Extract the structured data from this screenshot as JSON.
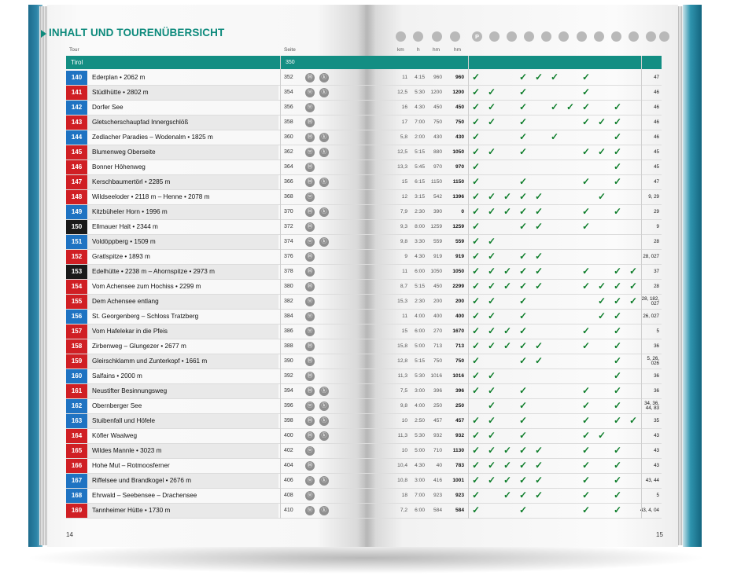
{
  "header": {
    "title": "INHALT UND TOURENÜBERSICHT"
  },
  "columns": {
    "tour": "Tour",
    "seite": "Seite",
    "km": "km",
    "h": "h",
    "hm": "hm",
    "hm2": "hm"
  },
  "header_icons": [
    {
      "name": "distance-icon",
      "glyph": ""
    },
    {
      "name": "time-icon",
      "glyph": ""
    },
    {
      "name": "ascent-icon",
      "glyph": ""
    },
    {
      "name": "altitude-icon",
      "glyph": ""
    },
    {
      "name": "parking-icon",
      "glyph": "P"
    },
    {
      "name": "bus-icon",
      "glyph": ""
    },
    {
      "name": "restaurant-icon",
      "glyph": ""
    },
    {
      "name": "hut-icon",
      "glyph": ""
    },
    {
      "name": "summit-icon",
      "glyph": ""
    },
    {
      "name": "winter-icon",
      "glyph": ""
    },
    {
      "name": "bike-icon",
      "glyph": ""
    },
    {
      "name": "cablecar-icon",
      "glyph": ""
    },
    {
      "name": "lake-icon",
      "glyph": ""
    },
    {
      "name": "hazard-icon",
      "glyph": ""
    },
    {
      "name": "kids-icon",
      "glyph": ""
    },
    {
      "name": "map-icon",
      "glyph": ""
    }
  ],
  "region": {
    "name": "Tirol",
    "page": "350"
  },
  "colors": {
    "red": "#d01f24",
    "blue": "#1f73c2",
    "black": "#1a1a1a",
    "teal": "#138e83",
    "check": "#0d7d2a"
  },
  "check_glyph": "✓",
  "tours": [
    {
      "num": "140",
      "color": "blue",
      "name": "Ederplan • 2062 m",
      "page": "352",
      "icons": [
        "Ⓜ",
        "ⓚ"
      ],
      "km": "11",
      "h": "4:15",
      "hm": "960",
      "hm2": "960",
      "checks": [
        1,
        0,
        0,
        1,
        1,
        1,
        0,
        1,
        0,
        0,
        0
      ],
      "karte": "47"
    },
    {
      "num": "141",
      "color": "red",
      "name": "Stüdlhütte • 2802 m",
      "page": "354",
      "icons": [
        "ⓦ",
        "ⓚ"
      ],
      "km": "12,5",
      "h": "5:30",
      "hm": "1200",
      "hm2": "1200",
      "checks": [
        1,
        1,
        0,
        1,
        0,
        0,
        0,
        1,
        0,
        0,
        0
      ],
      "karte": "46"
    },
    {
      "num": "142",
      "color": "blue",
      "name": "Dorfer See",
      "page": "356",
      "icons": [
        "ⓦ"
      ],
      "km": "16",
      "h": "4:30",
      "hm": "450",
      "hm2": "450",
      "checks": [
        1,
        1,
        0,
        1,
        0,
        1,
        1,
        1,
        0,
        1,
        0
      ],
      "karte": "46"
    },
    {
      "num": "143",
      "color": "red",
      "name": "Gletscherschaupfad Innergschlöß",
      "page": "358",
      "icons": [
        "Ⓜ"
      ],
      "km": "17",
      "h": "7:00",
      "hm": "750",
      "hm2": "750",
      "checks": [
        1,
        1,
        0,
        1,
        0,
        0,
        0,
        1,
        1,
        1,
        0
      ],
      "karte": "46"
    },
    {
      "num": "144",
      "color": "blue",
      "name": "Zedlacher Paradies – Wodenalm • 1825 m",
      "page": "360",
      "icons": [
        "Ⓜ",
        "ⓚ"
      ],
      "km": "5,8",
      "h": "2:00",
      "hm": "430",
      "hm2": "430",
      "checks": [
        1,
        0,
        0,
        1,
        0,
        1,
        0,
        0,
        0,
        1,
        0
      ],
      "karte": "46"
    },
    {
      "num": "145",
      "color": "red",
      "name": "Blumenweg Oberseite",
      "page": "362",
      "icons": [
        "ⓦ",
        "ⓚ"
      ],
      "km": "12,5",
      "h": "5:15",
      "hm": "880",
      "hm2": "1050",
      "checks": [
        1,
        1,
        0,
        1,
        0,
        0,
        0,
        1,
        1,
        1,
        0
      ],
      "karte": "45"
    },
    {
      "num": "146",
      "color": "red",
      "name": "Bonner Höhenweg",
      "page": "364",
      "icons": [
        "Ⓜ"
      ],
      "km": "13,3",
      "h": "5:45",
      "hm": "970",
      "hm2": "970",
      "checks": [
        1,
        0,
        0,
        0,
        0,
        0,
        0,
        0,
        0,
        1,
        0
      ],
      "karte": "45"
    },
    {
      "num": "147",
      "color": "red",
      "name": "Kerschbaumertörl • 2285 m",
      "page": "366",
      "icons": [
        "Ⓜ",
        "ⓚ"
      ],
      "km": "15",
      "h": "6:15",
      "hm": "1150",
      "hm2": "1150",
      "checks": [
        1,
        0,
        0,
        1,
        0,
        0,
        0,
        1,
        0,
        1,
        0
      ],
      "karte": "47"
    },
    {
      "num": "148",
      "color": "red",
      "name": "Wildseeloder • 2118 m – Henne • 2078 m",
      "page": "368",
      "icons": [
        "ⓦ"
      ],
      "km": "12",
      "h": "3:15",
      "hm": "542",
      "hm2": "1396",
      "checks": [
        1,
        1,
        1,
        1,
        1,
        0,
        0,
        0,
        1,
        0,
        0
      ],
      "karte": "9, 29"
    },
    {
      "num": "149",
      "color": "blue",
      "name": "Kitzbüheler Horn • 1996 m",
      "page": "370",
      "icons": [
        "Ⓜ",
        "ⓚ"
      ],
      "km": "7,9",
      "h": "2:30",
      "hm": "390",
      "hm2": "0",
      "checks": [
        1,
        1,
        1,
        1,
        1,
        0,
        0,
        1,
        0,
        1,
        0
      ],
      "karte": "29"
    },
    {
      "num": "150",
      "color": "black",
      "name": "Ellmauer Halt • 2344 m",
      "page": "372",
      "icons": [
        "Ⓜ"
      ],
      "km": "9,3",
      "h": "8:00",
      "hm": "1259",
      "hm2": "1259",
      "checks": [
        1,
        0,
        0,
        1,
        1,
        0,
        0,
        1,
        0,
        0,
        0
      ],
      "karte": "9"
    },
    {
      "num": "151",
      "color": "blue",
      "name": "Voldöppberg • 1509 m",
      "page": "374",
      "icons": [
        "ⓦ",
        "ⓚ"
      ],
      "km": "9,8",
      "h": "3:30",
      "hm": "559",
      "hm2": "559",
      "checks": [
        1,
        1,
        0,
        0,
        0,
        0,
        0,
        0,
        0,
        0,
        0
      ],
      "karte": "28"
    },
    {
      "num": "152",
      "color": "red",
      "name": "Gratlspitze • 1893 m",
      "page": "376",
      "icons": [
        "Ⓜ"
      ],
      "km": "9",
      "h": "4:30",
      "hm": "919",
      "hm2": "919",
      "checks": [
        1,
        1,
        0,
        1,
        1,
        0,
        0,
        0,
        0,
        0,
        0
      ],
      "karte": "28, 027"
    },
    {
      "num": "153",
      "color": "black",
      "name": "Edelhütte • 2238 m – Ahornspitze • 2973 m",
      "page": "378",
      "icons": [
        "Ⓜ"
      ],
      "km": "11",
      "h": "6:00",
      "hm": "1050",
      "hm2": "1050",
      "checks": [
        1,
        1,
        1,
        1,
        1,
        0,
        0,
        1,
        0,
        1,
        1
      ],
      "karte": "37"
    },
    {
      "num": "154",
      "color": "red",
      "name": "Vom Achensee zum Hochiss • 2299 m",
      "page": "380",
      "icons": [
        "Ⓜ"
      ],
      "km": "8,7",
      "h": "5:15",
      "hm": "450",
      "hm2": "2299",
      "checks": [
        1,
        1,
        1,
        1,
        1,
        0,
        0,
        1,
        1,
        1,
        1
      ],
      "karte": "28"
    },
    {
      "num": "155",
      "color": "red",
      "name": "Dem Achensee entlang",
      "page": "382",
      "icons": [
        "ⓦ"
      ],
      "km": "15,3",
      "h": "2:30",
      "hm": "200",
      "hm2": "200",
      "checks": [
        1,
        1,
        0,
        1,
        0,
        0,
        0,
        0,
        1,
        1,
        1
      ],
      "karte": "28, 182, 027"
    },
    {
      "num": "156",
      "color": "blue",
      "name": "St. Georgenberg – Schloss Tratzberg",
      "page": "384",
      "icons": [
        "ⓦ"
      ],
      "km": "11",
      "h": "4:00",
      "hm": "400",
      "hm2": "400",
      "checks": [
        1,
        1,
        0,
        1,
        0,
        0,
        0,
        0,
        1,
        1,
        0
      ],
      "karte": "26, 027"
    },
    {
      "num": "157",
      "color": "red",
      "name": "Vom Hafelekar in die Pfeis",
      "page": "386",
      "icons": [
        "ⓦ"
      ],
      "km": "15",
      "h": "6:00",
      "hm": "270",
      "hm2": "1670",
      "checks": [
        1,
        1,
        1,
        1,
        0,
        0,
        0,
        1,
        0,
        1,
        0
      ],
      "karte": "5"
    },
    {
      "num": "158",
      "color": "red",
      "name": "Zirbenweg – Glungezer • 2677 m",
      "page": "388",
      "icons": [
        "Ⓜ"
      ],
      "km": "15,8",
      "h": "5:00",
      "hm": "713",
      "hm2": "713",
      "checks": [
        1,
        1,
        1,
        1,
        1,
        0,
        0,
        1,
        0,
        1,
        0
      ],
      "karte": "36"
    },
    {
      "num": "159",
      "color": "red",
      "name": "Gleirschklamm und Zunterkopf • 1661 m",
      "page": "390",
      "icons": [
        "Ⓜ"
      ],
      "km": "12,8",
      "h": "5:15",
      "hm": "750",
      "hm2": "750",
      "checks": [
        1,
        0,
        0,
        1,
        1,
        0,
        0,
        0,
        0,
        1,
        0
      ],
      "karte": "5, 26, 026"
    },
    {
      "num": "160",
      "color": "blue",
      "name": "Salfains • 2000 m",
      "page": "392",
      "icons": [
        "Ⓜ"
      ],
      "km": "11,3",
      "h": "5:30",
      "hm": "1016",
      "hm2": "1016",
      "checks": [
        1,
        1,
        0,
        0,
        0,
        0,
        0,
        0,
        0,
        1,
        0
      ],
      "karte": "36"
    },
    {
      "num": "161",
      "color": "red",
      "name": "Neustifter Besinnungsweg",
      "page": "394",
      "icons": [
        "Ⓜ",
        "ⓚ"
      ],
      "km": "7,5",
      "h": "3:00",
      "hm": "396",
      "hm2": "396",
      "checks": [
        1,
        1,
        0,
        1,
        0,
        0,
        0,
        1,
        0,
        1,
        0
      ],
      "karte": "36"
    },
    {
      "num": "162",
      "color": "blue",
      "name": "Obernberger See",
      "page": "396",
      "icons": [
        "ⓦ",
        "ⓚ"
      ],
      "km": "9,8",
      "h": "4:00",
      "hm": "250",
      "hm2": "250",
      "checks": [
        0,
        1,
        0,
        1,
        0,
        0,
        0,
        1,
        0,
        1,
        0
      ],
      "karte": "34, 36, 44, 83"
    },
    {
      "num": "163",
      "color": "blue",
      "name": "Stuibenfall und Höfele",
      "page": "398",
      "icons": [
        "Ⓜ",
        "ⓚ"
      ],
      "km": "10",
      "h": "2:50",
      "hm": "457",
      "hm2": "457",
      "checks": [
        1,
        1,
        0,
        1,
        0,
        0,
        0,
        1,
        0,
        1,
        1
      ],
      "karte": "35"
    },
    {
      "num": "164",
      "color": "red",
      "name": "Köfler Waalweg",
      "page": "400",
      "icons": [
        "Ⓜ",
        "ⓚ"
      ],
      "km": "11,3",
      "h": "5:30",
      "hm": "932",
      "hm2": "932",
      "checks": [
        1,
        1,
        0,
        1,
        0,
        0,
        0,
        1,
        1,
        0,
        0
      ],
      "karte": "43"
    },
    {
      "num": "165",
      "color": "red",
      "name": "Wildes Mannle • 3023 m",
      "page": "402",
      "icons": [
        "ⓦ"
      ],
      "km": "10",
      "h": "5:00",
      "hm": "710",
      "hm2": "1130",
      "checks": [
        1,
        1,
        1,
        1,
        1,
        0,
        0,
        1,
        0,
        1,
        0
      ],
      "karte": "43"
    },
    {
      "num": "166",
      "color": "red",
      "name": "Hohe Mut – Rotmoosferner",
      "page": "404",
      "icons": [
        "Ⓜ"
      ],
      "km": "10,4",
      "h": "4:30",
      "hm": "40",
      "hm2": "783",
      "checks": [
        1,
        1,
        1,
        1,
        1,
        0,
        0,
        1,
        0,
        1,
        0
      ],
      "karte": "43"
    },
    {
      "num": "167",
      "color": "blue",
      "name": "Riffelsee und Brandkogel • 2676 m",
      "page": "406",
      "icons": [
        "ⓦ",
        "ⓚ"
      ],
      "km": "10,8",
      "h": "3:00",
      "hm": "416",
      "hm2": "1001",
      "checks": [
        1,
        1,
        1,
        1,
        1,
        0,
        0,
        1,
        0,
        1,
        0
      ],
      "karte": "43, 44"
    },
    {
      "num": "168",
      "color": "blue",
      "name": "Ehrwald – Seebensee – Drachensee",
      "page": "408",
      "icons": [
        "ⓦ"
      ],
      "km": "18",
      "h": "7:00",
      "hm": "923",
      "hm2": "923",
      "checks": [
        1,
        0,
        1,
        1,
        1,
        0,
        0,
        1,
        0,
        1,
        0
      ],
      "karte": "5"
    },
    {
      "num": "169",
      "color": "red",
      "name": "Tannheimer Hütte • 1730 m",
      "page": "410",
      "icons": [
        "ⓦ",
        "ⓚ"
      ],
      "km": "7,2",
      "h": "6:00",
      "hm": "584",
      "hm2": "584",
      "checks": [
        1,
        0,
        0,
        1,
        0,
        0,
        0,
        1,
        0,
        1,
        0
      ],
      "karte": "43, 4, 04"
    }
  ],
  "page_left": "14",
  "page_right": "15"
}
